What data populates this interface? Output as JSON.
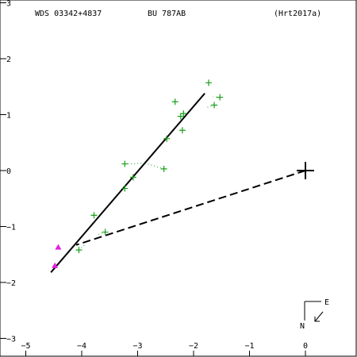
{
  "header": {
    "left": "WDS 03342+4837",
    "mid": "BU  787AB",
    "right": "(Hrt2017a)"
  },
  "compass": {
    "east": "E",
    "north": "N"
  },
  "chart_data": {
    "type": "scatter",
    "xlim": [
      0.9,
      -5.5
    ],
    "ylim": [
      3.0,
      -3.2
    ],
    "x_ticks": [
      -5,
      -4,
      -3,
      -2,
      -1,
      0
    ],
    "x_tick_labels": [
      "−5",
      "−4",
      "−3",
      "−2",
      "−1",
      "0"
    ],
    "y_ticks": [
      3,
      2,
      1,
      0,
      -1,
      -2,
      -3
    ],
    "y_tick_labels": [
      "3",
      "2",
      "1",
      "0",
      "−1",
      "−2",
      "−3"
    ],
    "primary": {
      "x": 0,
      "y": 0
    },
    "orbit_line": {
      "start": [
        -4.55,
        -1.82
      ],
      "end": [
        -1.8,
        1.38
      ]
    },
    "observations": [
      {
        "x": -1.73,
        "y": 1.57,
        "fx": -1.73,
        "fy": 1.57
      },
      {
        "x": -1.53,
        "y": 1.31,
        "fx": -1.65,
        "fy": 1.32
      },
      {
        "x": -1.63,
        "y": 1.17,
        "fx": -1.76,
        "fy": 1.13
      },
      {
        "x": -2.33,
        "y": 1.23,
        "fx": -2.33,
        "fy": 1.23
      },
      {
        "x": -2.18,
        "y": 1.02,
        "fx": -2.22,
        "fy": 1.0
      },
      {
        "x": -2.23,
        "y": 0.97,
        "fx": -2.23,
        "fy": 0.97
      },
      {
        "x": -2.2,
        "y": 0.72,
        "fx": -2.2,
        "fy": 0.72
      },
      {
        "x": -2.48,
        "y": 0.57,
        "fx": -2.48,
        "fy": 0.57
      },
      {
        "x": -3.23,
        "y": 0.12,
        "fx": -2.86,
        "fy": 0.13
      },
      {
        "x": -2.53,
        "y": 0.03,
        "fx": -2.86,
        "fy": 0.13
      },
      {
        "x": -3.08,
        "y": -0.12,
        "fx": -3.08,
        "fy": -0.12
      },
      {
        "x": -3.23,
        "y": -0.32,
        "fx": -3.23,
        "fy": -0.32
      },
      {
        "x": -3.78,
        "y": -0.8,
        "fx": -3.78,
        "fy": -0.8
      },
      {
        "x": -3.58,
        "y": -1.1,
        "fx": -3.73,
        "fy": -1.15
      },
      {
        "x": -4.05,
        "y": -1.42,
        "fx": -3.95,
        "fy": -1.33
      }
    ],
    "special_points": [
      {
        "x": -4.42,
        "y": -1.37
      },
      {
        "x": -4.48,
        "y": -1.7
      }
    ],
    "current_position": {
      "x": -4.1,
      "y": -1.33
    },
    "colors": {
      "observation": "#1a9e1a",
      "special": "#e020e0",
      "axis": "#000000"
    }
  }
}
